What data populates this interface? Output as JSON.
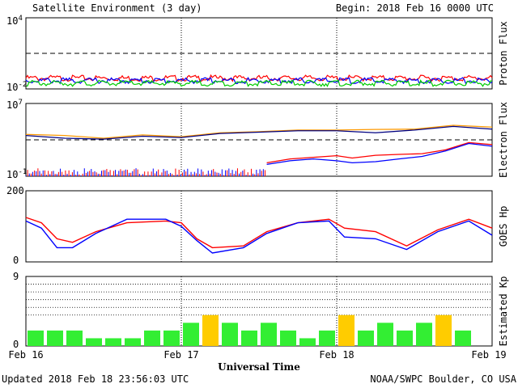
{
  "header": {
    "title": "Satellite Environment (3 day)",
    "begin": "Begin:  2018 Feb 16 0000 UTC"
  },
  "footer": {
    "updated": "Updated 2018 Feb 18 23:56:03 UTC",
    "credit": "NOAA/SWPC Boulder, CO USA"
  },
  "chart_data": [
    {
      "type": "line",
      "ylabel": "Proton Flux",
      "yscale": "log",
      "ylim": [
        0.01,
        10000
      ],
      "ytick_labels": [
        "10^4",
        "10^-2"
      ],
      "threshold": 10,
      "x_range_days": [
        0,
        3
      ],
      "series": [
        {
          "color": "#ff0000",
          "level": 0.08
        },
        {
          "color": "#0000ff",
          "level": 0.05
        },
        {
          "color": "#00cc00",
          "level": 0.03
        }
      ]
    },
    {
      "type": "line",
      "ylabel": "Electron Flux",
      "yscale": "log",
      "ylim": [
        0.1,
        10000000
      ],
      "ytick_labels": [
        "10^7",
        "10^-1"
      ],
      "threshold": 1000,
      "x_range_days": [
        0,
        3
      ],
      "series": [
        {
          "color": "#ff9900",
          "x": [
            0,
            0.25,
            0.5,
            0.75,
            1.0,
            1.25,
            1.5,
            1.75,
            2.0,
            2.25,
            2.5,
            2.75,
            3.0
          ],
          "y": [
            4000,
            3000,
            1500,
            3500,
            2200,
            6000,
            8000,
            12000,
            12000,
            14000,
            15000,
            40000,
            25000
          ]
        },
        {
          "color": "#000080",
          "x": [
            0,
            0.25,
            0.5,
            0.75,
            1.0,
            1.25,
            1.5,
            1.75,
            2.0,
            2.25,
            2.5,
            2.75,
            3.0
          ],
          "y": [
            3000,
            1500,
            1200,
            2500,
            1800,
            5000,
            7000,
            10000,
            10000,
            6000,
            12000,
            30000,
            15000
          ]
        },
        {
          "color": "#ff0000",
          "x": [
            1.55,
            1.7,
            1.85,
            2.0,
            2.1,
            2.25,
            2.4,
            2.55,
            2.7,
            2.85,
            3.0
          ],
          "y": [
            3,
            8,
            12,
            18,
            10,
            20,
            25,
            30,
            80,
            500,
            300
          ]
        },
        {
          "color": "#0000ff",
          "x": [
            1.55,
            1.7,
            1.85,
            2.0,
            2.1,
            2.25,
            2.4,
            2.55,
            2.7,
            2.85,
            3.0
          ],
          "y": [
            2,
            5,
            8,
            5,
            3,
            4,
            8,
            15,
            60,
            400,
            200
          ]
        }
      ]
    },
    {
      "type": "line",
      "ylabel": "GOES Hp",
      "ylim": [
        0,
        200
      ],
      "ytick_labels": [
        "200",
        "0"
      ],
      "x_range_days": [
        0,
        3
      ],
      "series": [
        {
          "color": "#ff0000",
          "x": [
            0,
            0.1,
            0.2,
            0.3,
            0.45,
            0.65,
            0.9,
            1.0,
            1.1,
            1.2,
            1.4,
            1.55,
            1.75,
            1.95,
            2.05,
            2.25,
            2.45,
            2.65,
            2.85,
            3.0
          ],
          "y": [
            125,
            110,
            65,
            55,
            85,
            110,
            115,
            110,
            65,
            40,
            45,
            85,
            110,
            120,
            95,
            85,
            45,
            90,
            120,
            95
          ]
        },
        {
          "color": "#0000ff",
          "x": [
            0,
            0.1,
            0.2,
            0.3,
            0.45,
            0.65,
            0.9,
            1.0,
            1.1,
            1.2,
            1.4,
            1.55,
            1.75,
            1.95,
            2.05,
            2.25,
            2.45,
            2.65,
            2.85,
            3.0
          ],
          "y": [
            115,
            95,
            40,
            40,
            80,
            120,
            120,
            100,
            60,
            25,
            40,
            80,
            110,
            115,
            70,
            65,
            35,
            85,
            115,
            75
          ]
        }
      ]
    },
    {
      "type": "bar",
      "ylabel": "Estimated Kp",
      "ylim": [
        0,
        9
      ],
      "ytick_labels": [
        "9",
        "0"
      ],
      "gridlines": [
        4,
        5,
        6,
        7,
        8
      ],
      "colors": {
        "normal": "#33ee33",
        "active": "#ffcc00",
        "active_threshold": 4
      },
      "values": [
        2,
        2,
        2,
        1,
        1,
        1,
        2,
        2,
        3,
        4,
        3,
        2,
        3,
        2,
        1,
        2,
        4,
        2,
        3,
        2,
        3,
        4,
        2,
        0
      ]
    }
  ],
  "xaxis": {
    "label": "Universal Time",
    "ticks": [
      {
        "day": 0,
        "label": "Feb 16"
      },
      {
        "day": 1,
        "label": "Feb 17"
      },
      {
        "day": 2,
        "label": "Feb 18"
      },
      {
        "day": 3,
        "label": "Feb 19"
      }
    ]
  }
}
